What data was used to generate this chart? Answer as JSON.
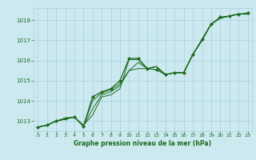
{
  "title": "Graphe pression niveau de la mer (hPa)",
  "xlabel": "Graphe pression niveau de la mer (hPa)",
  "x_ticks": [
    0,
    1,
    2,
    3,
    4,
    5,
    6,
    7,
    8,
    9,
    10,
    11,
    12,
    13,
    14,
    15,
    16,
    17,
    18,
    19,
    20,
    21,
    22,
    23
  ],
  "y_ticks": [
    1013,
    1014,
    1015,
    1016,
    1017,
    1018
  ],
  "ylim": [
    1012.5,
    1018.6
  ],
  "xlim": [
    -0.5,
    23.5
  ],
  "bg_color": "#cce9f0",
  "grid_color": "#aacfda",
  "line_color": "#1a6b1a",
  "series1": [
    1012.7,
    1012.8,
    1013.0,
    1013.1,
    1013.2,
    1012.8,
    1013.3,
    1014.2,
    1014.3,
    1014.6,
    1016.05,
    1016.05,
    1015.6,
    1015.7,
    1015.3,
    1015.4,
    1015.4,
    1016.3,
    1017.0,
    1017.8,
    1018.1,
    1018.2,
    1018.3,
    1018.3
  ],
  "series2": [
    1012.7,
    1012.8,
    1013.0,
    1013.1,
    1013.2,
    1012.75,
    1013.6,
    1014.3,
    1014.45,
    1014.75,
    1015.5,
    1015.9,
    1015.6,
    1015.7,
    1015.3,
    1015.4,
    1015.4,
    1016.3,
    1017.0,
    1017.8,
    1018.1,
    1018.2,
    1018.3,
    1018.3
  ],
  "series3": [
    1012.7,
    1012.8,
    1013.0,
    1013.1,
    1013.2,
    1012.75,
    1014.0,
    1014.4,
    1014.55,
    1014.85,
    1015.5,
    1015.6,
    1015.6,
    1015.7,
    1015.3,
    1015.4,
    1015.4,
    1016.3,
    1017.0,
    1017.8,
    1018.1,
    1018.2,
    1018.3,
    1018.3
  ],
  "series_main": [
    1012.7,
    1012.8,
    1013.0,
    1013.15,
    1013.2,
    1012.75,
    1014.2,
    1014.45,
    1014.6,
    1015.0,
    1016.1,
    1016.1,
    1015.6,
    1015.55,
    1015.3,
    1015.4,
    1015.4,
    1016.3,
    1017.05,
    1017.8,
    1018.15,
    1018.2,
    1018.3,
    1018.35
  ]
}
